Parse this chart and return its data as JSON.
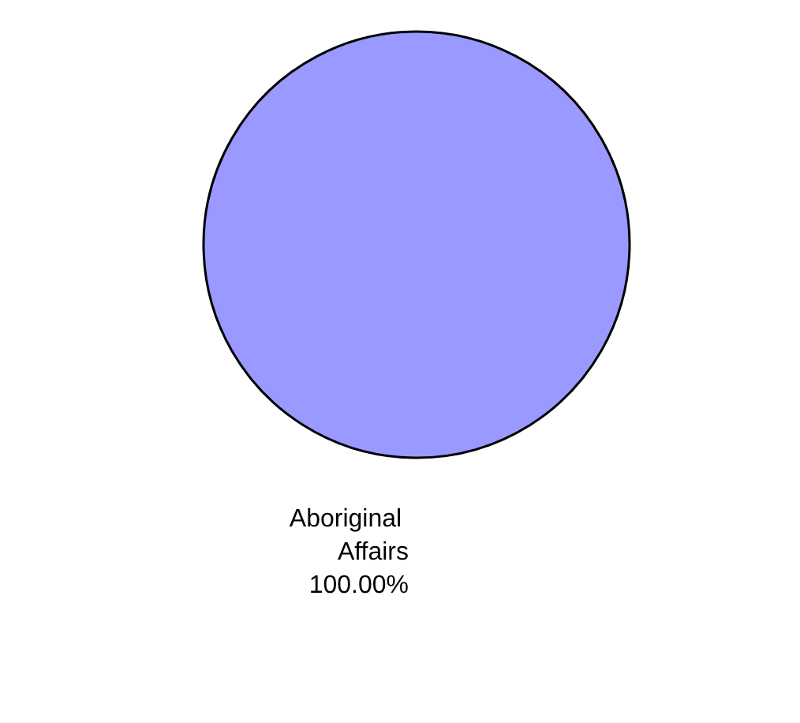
{
  "chart_data": {
    "type": "pie",
    "categories": [
      "Aboriginal Affairs"
    ],
    "values": [
      100
    ],
    "colors": [
      "#9999ff"
    ],
    "value_labels": [
      "100.00%"
    ],
    "legend": false
  }
}
